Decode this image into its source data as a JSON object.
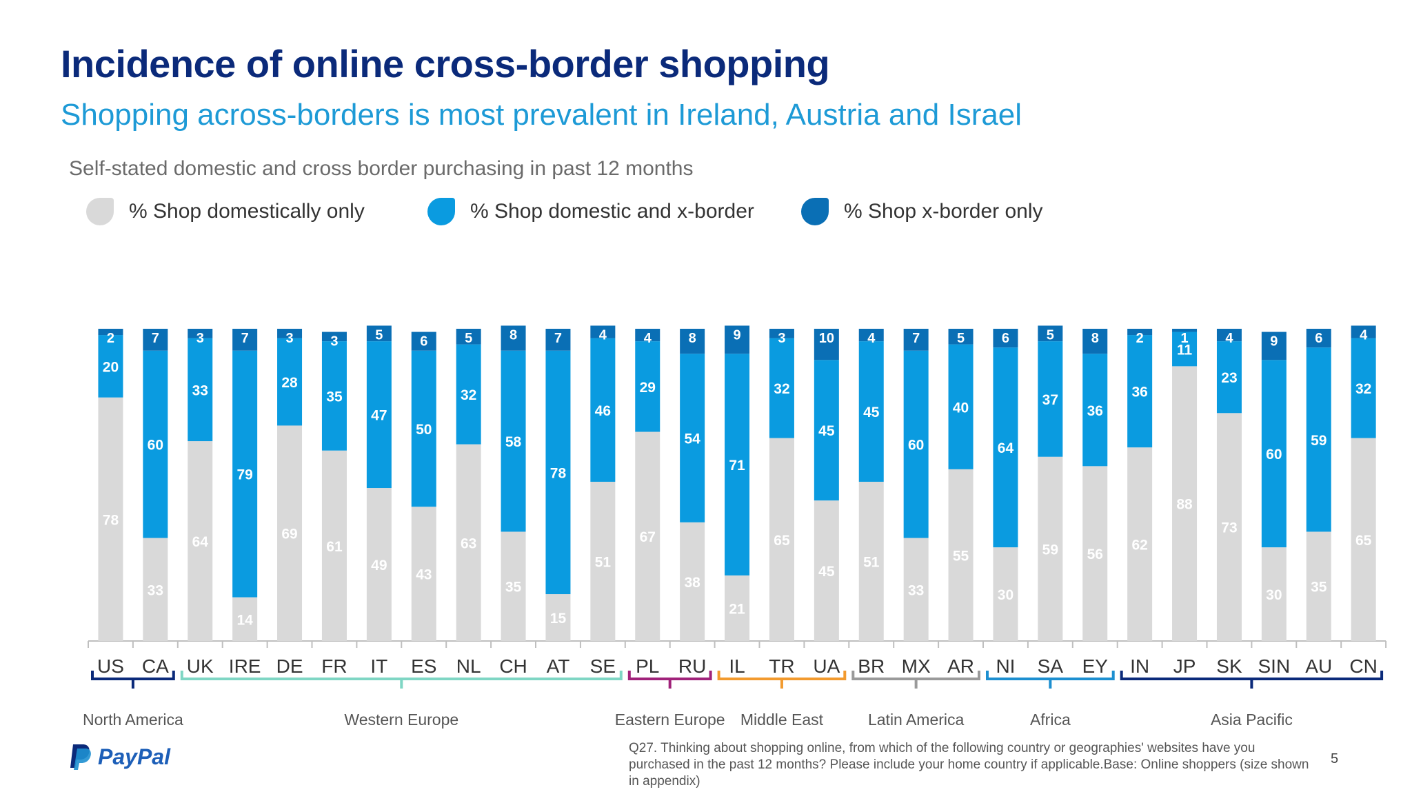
{
  "title": "Incidence of online cross-border shopping",
  "subtitle": "Shopping across-borders is most prevalent in Ireland, Austria and Israel",
  "chart_caption": "Self-stated domestic and cross border purchasing in past 12 months",
  "footnote": "Q27. Thinking about shopping online, from which of the following country or geographies' websites have you purchased in the past 12 months? Please include your home country if applicable.Base: Online shoppers (size shown in appendix)",
  "page_number": "5",
  "logo": {
    "text": "PayPal",
    "icon": "paypal-p-icon"
  },
  "colors": {
    "domestic": "#d9d9d9",
    "both": "#0a9be0",
    "xborder": "#0a6fb5",
    "title": "#0b2a7a",
    "subtitle": "#1d9ad6"
  },
  "chart_data": {
    "type": "bar",
    "stacked": true,
    "categories": [
      "US",
      "CA",
      "UK",
      "IRE",
      "DE",
      "FR",
      "IT",
      "ES",
      "NL",
      "CH",
      "AT",
      "SE",
      "PL",
      "RU",
      "IL",
      "TR",
      "UA",
      "BR",
      "MX",
      "AR",
      "NI",
      "SA",
      "EY",
      "IN",
      "JP",
      "SK",
      "SIN",
      "AU",
      "CN"
    ],
    "series": [
      {
        "name": "% Shop domestically only",
        "color": "#d9d9d9",
        "values": [
          78,
          33,
          64,
          14,
          69,
          61,
          49,
          43,
          63,
          35,
          15,
          51,
          67,
          38,
          21,
          65,
          45,
          51,
          33,
          55,
          30,
          59,
          56,
          62,
          88,
          73,
          30,
          35,
          65
        ]
      },
      {
        "name": "% Shop domestic and x-border",
        "color": "#0a9be0",
        "values": [
          20,
          60,
          33,
          79,
          28,
          35,
          47,
          50,
          32,
          58,
          78,
          46,
          29,
          54,
          71,
          32,
          45,
          45,
          60,
          40,
          64,
          37,
          36,
          36,
          11,
          23,
          60,
          59,
          32
        ]
      },
      {
        "name": "% Shop x-border only",
        "color": "#0a6fb5",
        "values": [
          2,
          7,
          3,
          7,
          3,
          3,
          5,
          6,
          5,
          8,
          7,
          4,
          4,
          8,
          9,
          3,
          10,
          4,
          7,
          5,
          6,
          5,
          8,
          2,
          1,
          4,
          9,
          6,
          4
        ]
      }
    ],
    "ylim": [
      0,
      100
    ],
    "legend_position": "top-left",
    "grid": false,
    "groups": [
      {
        "name": "North America",
        "start": 0,
        "end": 1,
        "color": "#0b2a7a"
      },
      {
        "name": "Western Europe",
        "start": 2,
        "end": 11,
        "color": "#7fd6c4"
      },
      {
        "name": "Eastern Europe",
        "start": 12,
        "end": 13,
        "color": "#a0227a"
      },
      {
        "name": "Middle East",
        "start": 14,
        "end": 16,
        "color": "#f29a2e"
      },
      {
        "name": "Latin America",
        "start": 17,
        "end": 19,
        "color": "#9a9a9a"
      },
      {
        "name": "Africa",
        "start": 20,
        "end": 22,
        "color": "#1d8fd0"
      },
      {
        "name": "Asia Pacific",
        "start": 23,
        "end": 28,
        "color": "#0b2a7a"
      }
    ]
  }
}
